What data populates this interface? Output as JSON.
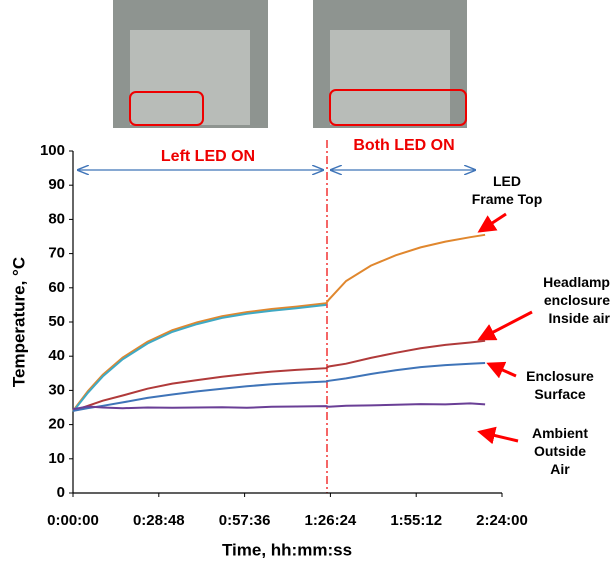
{
  "chart_data": {
    "type": "line",
    "y_label": "Temperature, °C",
    "x_label": "Time, hh:mm:ss",
    "annotations": [
      "Left LED ON",
      "Both LED ON"
    ],
    "x": [
      0,
      300,
      600,
      1000,
      1500,
      2000,
      2500,
      3000,
      3500,
      4000,
      4500,
      5100,
      5150,
      5500,
      6000,
      6500,
      7000,
      7500,
      8000,
      8300
    ],
    "xlim": [
      0,
      8640
    ],
    "xticks": [
      {
        "value": 0,
        "label": "0:00:00"
      },
      {
        "value": 1728,
        "label": "0:28:48"
      },
      {
        "value": 3456,
        "label": "0:57:36"
      },
      {
        "value": 5184,
        "label": "1:26:24"
      },
      {
        "value": 6912,
        "label": "1:55:12"
      },
      {
        "value": 8640,
        "label": "2:24:00"
      }
    ],
    "ylim": [
      0,
      100
    ],
    "yticks": [
      0,
      10,
      20,
      30,
      40,
      50,
      60,
      70,
      80,
      90,
      100
    ],
    "grid": false,
    "series": [
      {
        "name": "LED\nFrame Top",
        "color": "#e0872e",
        "values": [
          24,
          29.8,
          34.6,
          39.6,
          44.2,
          47.6,
          49.9,
          51.7,
          52.9,
          53.8,
          54.5,
          55.5,
          56.5,
          62,
          66.5,
          69.5,
          71.8,
          73.5,
          74.8,
          75.5
        ]
      },
      {
        "color": "#3fa9c4",
        "values": [
          23.8,
          29.3,
          34.1,
          39.1,
          43.7,
          47.1,
          49.4,
          51.2,
          52.4,
          53.3,
          54,
          55,
          null,
          null,
          null,
          null,
          null,
          null,
          null,
          null
        ]
      },
      {
        "name": "Headlamp\nenclosure\nInside air",
        "color": "#b03a3a",
        "values": [
          24,
          25.5,
          27,
          28.5,
          30.5,
          32,
          33,
          34,
          34.8,
          35.5,
          36,
          36.5,
          37,
          37.8,
          39.5,
          41,
          42.3,
          43.3,
          44,
          44.5
        ]
      },
      {
        "name": "Enclosure\nSurface",
        "color": "#3f74b8",
        "values": [
          24,
          24.8,
          25.5,
          26.5,
          27.8,
          28.8,
          29.7,
          30.5,
          31.2,
          31.8,
          32.2,
          32.6,
          32.8,
          33.5,
          34.8,
          35.9,
          36.8,
          37.4,
          37.8,
          38
        ]
      },
      {
        "name": "Ambient\nOutside Air",
        "color": "#6a3f96",
        "values": [
          24.5,
          25.3,
          25,
          24.8,
          25,
          24.9,
          25,
          25.1,
          24.9,
          25.2,
          25.3,
          25.4,
          25.2,
          25.5,
          25.6,
          25.8,
          26,
          25.9,
          26.2,
          25.9
        ]
      }
    ]
  }
}
